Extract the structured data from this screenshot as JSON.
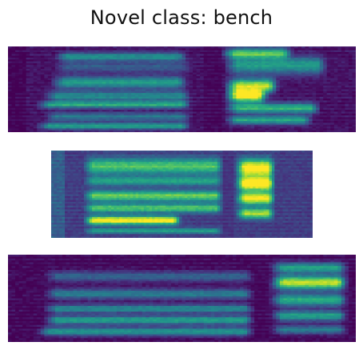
{
  "figure": {
    "title": "Novel class: bench",
    "colormap": {
      "name": "viridis",
      "stops": [
        "#440154",
        "#472d7b",
        "#3b528b",
        "#2c728e",
        "#21918c",
        "#28ae80",
        "#5ec962",
        "#addc30",
        "#fde725"
      ]
    },
    "spectrograms": [
      {
        "bg": 0.05,
        "edge": 0.0,
        "gap": {
          "start": 0.56,
          "end": 0.61,
          "level": 0.02
        },
        "bands": [
          {
            "y": 0.12,
            "w": 0.05,
            "s": 0.13,
            "e": 0.52,
            "i": 0.45
          },
          {
            "y": 0.24,
            "w": 0.06,
            "s": 0.13,
            "e": 0.53,
            "i": 0.25
          },
          {
            "y": 0.42,
            "w": 0.07,
            "s": 0.12,
            "e": 0.52,
            "i": 0.5
          },
          {
            "y": 0.58,
            "w": 0.06,
            "s": 0.1,
            "e": 0.53,
            "i": 0.42
          },
          {
            "y": 0.68,
            "w": 0.04,
            "s": 0.08,
            "e": 0.53,
            "i": 0.55
          },
          {
            "y": 0.82,
            "w": 0.05,
            "s": 0.1,
            "e": 0.53,
            "i": 0.35
          },
          {
            "y": 0.93,
            "w": 0.04,
            "s": 0.08,
            "e": 0.53,
            "i": 0.52
          },
          {
            "y": 0.08,
            "w": 0.06,
            "s": 0.61,
            "e": 0.82,
            "i": 0.65
          },
          {
            "y": 0.22,
            "w": 0.1,
            "s": 0.62,
            "e": 0.92,
            "i": 0.5
          },
          {
            "y": 0.46,
            "w": 0.08,
            "s": 0.62,
            "e": 0.78,
            "i": 0.85
          },
          {
            "y": 0.58,
            "w": 0.07,
            "s": 0.62,
            "e": 0.75,
            "i": 0.95
          },
          {
            "y": 0.72,
            "w": 0.06,
            "s": 0.62,
            "e": 0.9,
            "i": 0.6
          },
          {
            "y": 0.86,
            "w": 0.05,
            "s": 0.62,
            "e": 0.88,
            "i": 0.55
          }
        ]
      },
      {
        "bg": 0.18,
        "edge": 0.3,
        "gap": {
          "start": 0.66,
          "end": 0.7,
          "level": 0.15
        },
        "bands": [
          {
            "y": 0.18,
            "w": 0.09,
            "s": 0.12,
            "e": 0.66,
            "i": 0.55
          },
          {
            "y": 0.35,
            "w": 0.05,
            "s": 0.12,
            "e": 0.66,
            "i": 0.4
          },
          {
            "y": 0.52,
            "w": 0.06,
            "s": 0.12,
            "e": 0.66,
            "i": 0.6
          },
          {
            "y": 0.66,
            "w": 0.05,
            "s": 0.12,
            "e": 0.66,
            "i": 0.55
          },
          {
            "y": 0.8,
            "w": 0.05,
            "s": 0.12,
            "e": 0.5,
            "i": 0.85
          },
          {
            "y": 0.92,
            "w": 0.03,
            "s": 0.12,
            "e": 0.66,
            "i": 0.4
          },
          {
            "y": 0.2,
            "w": 0.1,
            "s": 0.7,
            "e": 0.86,
            "i": 0.9
          },
          {
            "y": 0.38,
            "w": 0.08,
            "s": 0.7,
            "e": 0.86,
            "i": 0.95
          },
          {
            "y": 0.55,
            "w": 0.07,
            "s": 0.7,
            "e": 0.86,
            "i": 0.85
          },
          {
            "y": 0.72,
            "w": 0.06,
            "s": 0.7,
            "e": 0.86,
            "i": 0.7
          }
        ]
      },
      {
        "bg": 0.02,
        "edge": 0.02,
        "gap": {
          "start": 0.71,
          "end": 0.74,
          "level": 0.02
        },
        "bands": [
          {
            "y": 0.25,
            "w": 0.06,
            "s": 0.1,
            "e": 0.71,
            "i": 0.3
          },
          {
            "y": 0.45,
            "w": 0.06,
            "s": 0.1,
            "e": 0.71,
            "i": 0.4
          },
          {
            "y": 0.62,
            "w": 0.05,
            "s": 0.1,
            "e": 0.71,
            "i": 0.45
          },
          {
            "y": 0.75,
            "w": 0.05,
            "s": 0.1,
            "e": 0.71,
            "i": 0.55
          },
          {
            "y": 0.88,
            "w": 0.05,
            "s": 0.08,
            "e": 0.71,
            "i": 0.5
          },
          {
            "y": 0.15,
            "w": 0.06,
            "s": 0.75,
            "e": 0.98,
            "i": 0.55
          },
          {
            "y": 0.32,
            "w": 0.08,
            "s": 0.75,
            "e": 0.98,
            "i": 0.9
          },
          {
            "y": 0.52,
            "w": 0.07,
            "s": 0.75,
            "e": 0.98,
            "i": 0.6
          },
          {
            "y": 0.7,
            "w": 0.06,
            "s": 0.75,
            "e": 0.98,
            "i": 0.55
          },
          {
            "y": 0.86,
            "w": 0.05,
            "s": 0.75,
            "e": 0.98,
            "i": 0.4
          }
        ]
      }
    ]
  }
}
